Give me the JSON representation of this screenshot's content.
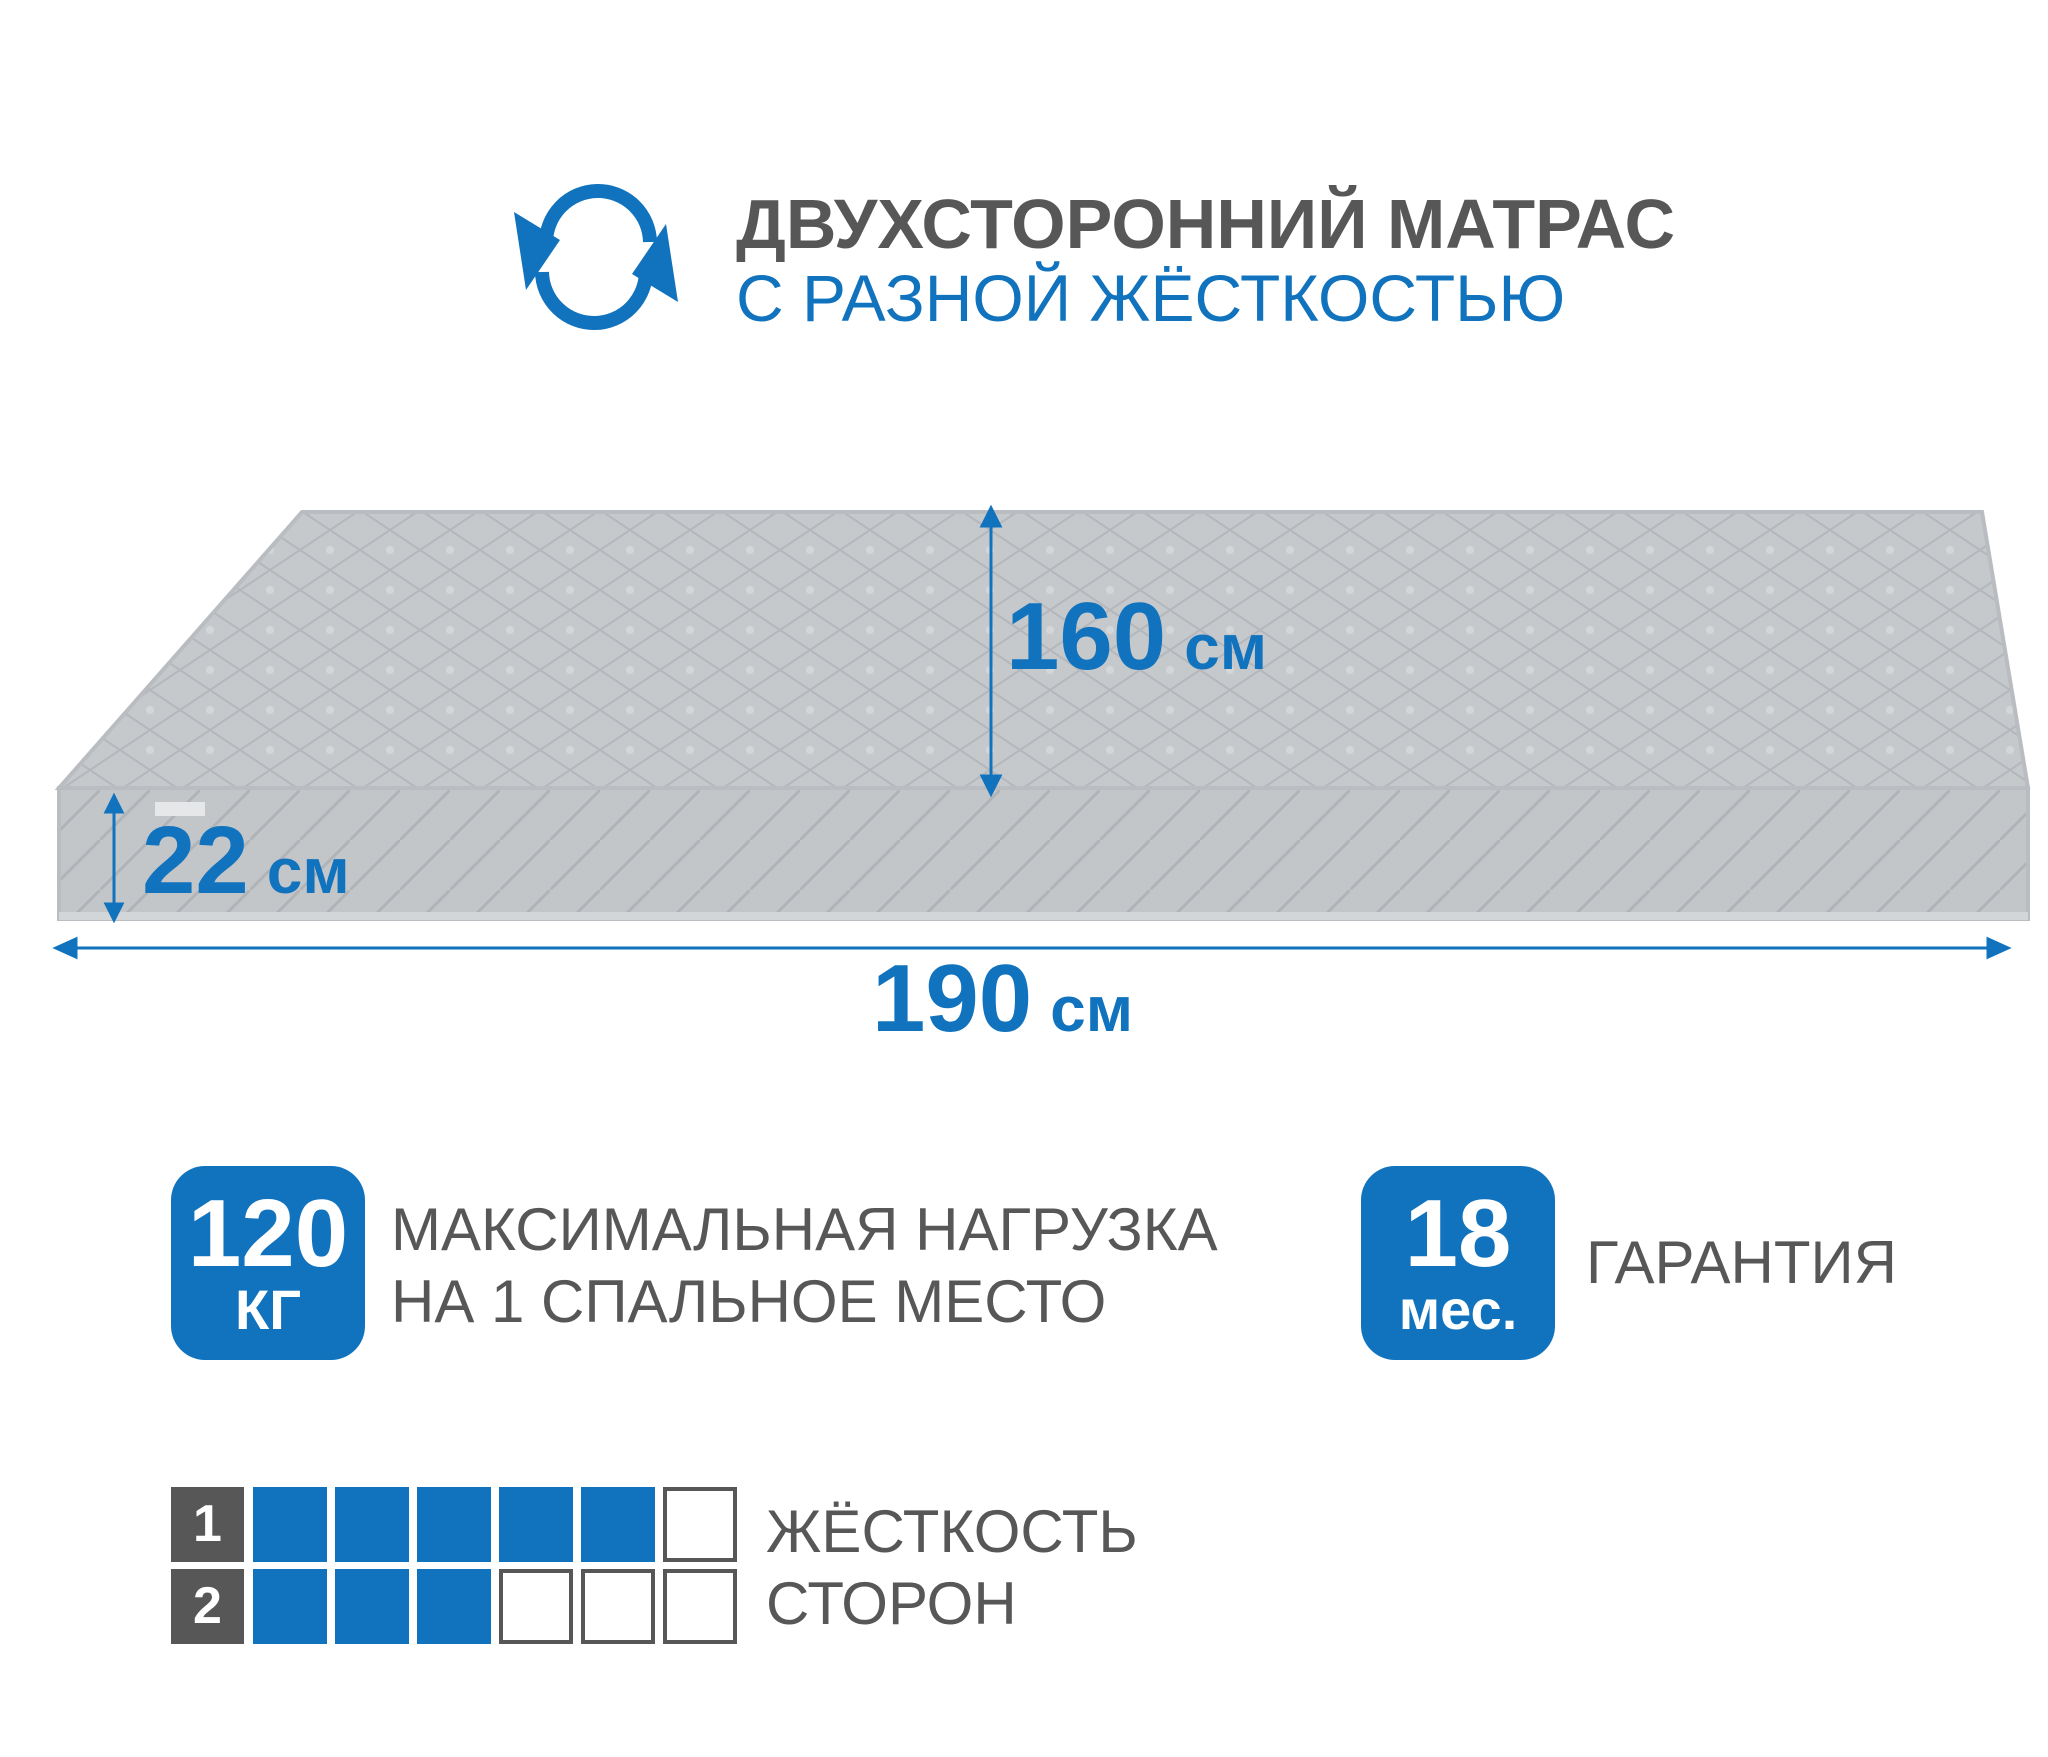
{
  "header": {
    "title": "ДВУХСТОРОННИЙ МАТРАС",
    "subtitle": "С РАЗНОЙ ЖЁСТКОСТЬЮ",
    "icon": "flip-rotate-icon"
  },
  "dimensions": {
    "width": {
      "value": "160",
      "unit": "см"
    },
    "height": {
      "value": "22",
      "unit": "см"
    },
    "length": {
      "value": "190",
      "unit": "см"
    }
  },
  "features": [
    {
      "badge_value": "120",
      "badge_unit": "КГ",
      "text_line1": "МАКСИМАЛЬНАЯ НАГРУЗКА",
      "text_line2": "НА 1 СПАЛЬНОЕ МЕСТО"
    },
    {
      "badge_value": "18",
      "badge_unit": "мес.",
      "text": "ГАРАНТИЯ"
    }
  ],
  "hardness": {
    "label_line1": "ЖЁСТКОСТЬ",
    "label_line2": "СТОРОН",
    "max": 6,
    "sides": [
      {
        "label": "1",
        "level": 5
      },
      {
        "label": "2",
        "level": 3
      }
    ]
  },
  "colors": {
    "accent": "#1173bd",
    "text": "#575757",
    "mattress": "#c8cbce"
  }
}
